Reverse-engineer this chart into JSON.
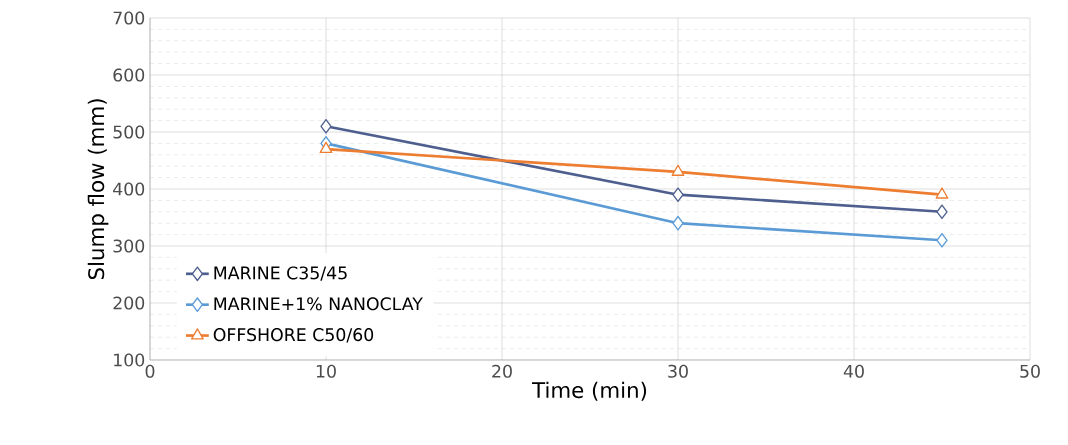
{
  "chart_data": {
    "type": "line",
    "xlabel": "Time (min)",
    "ylabel": "Slump flow (mm)",
    "xlim": [
      0,
      50
    ],
    "xticks": [
      0,
      10,
      20,
      30,
      40,
      50
    ],
    "ylim": [
      100,
      700
    ],
    "yticks": [
      100,
      200,
      300,
      400,
      500,
      600,
      700
    ],
    "grid": true,
    "legend": "bottom left",
    "series": [
      {
        "name": "MARINE C35/45",
        "color": "#4e5f8f",
        "marker": "diamond",
        "x": [
          10,
          30,
          45
        ],
        "values": [
          510,
          390,
          360
        ]
      },
      {
        "name": "MARINE+1% NANOCLAY",
        "color": "#5b9bd5",
        "marker": "diamond",
        "x": [
          10,
          30,
          45
        ],
        "values": [
          480,
          340,
          310
        ]
      },
      {
        "name": "OFFSHORE C50/60",
        "color": "#ed7d31",
        "marker": "triangle",
        "x": [
          10,
          30,
          45
        ],
        "values": [
          470,
          430,
          390
        ]
      }
    ]
  }
}
